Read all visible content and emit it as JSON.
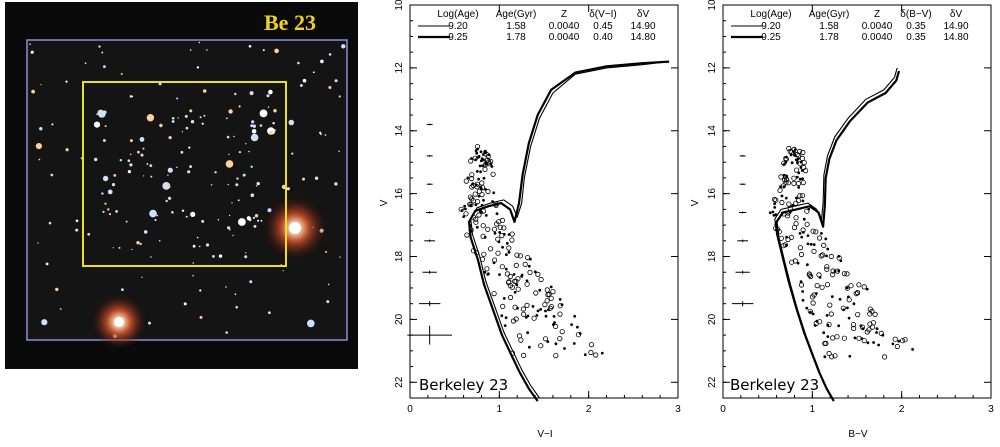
{
  "image_panel": {
    "label": "Be 23",
    "colors": {
      "background": "#0a0a0a",
      "box": "#e8e020",
      "label": "#f2d21e",
      "frame": "#8b8fd8"
    }
  },
  "chart_data": [
    {
      "type": "scatter",
      "cluster_label": "Berkeley 23",
      "xlabel": "V−I",
      "ylabel": "V",
      "xlim": [
        0,
        3
      ],
      "ylim": [
        22.5,
        10
      ],
      "x_ticks": [
        "0",
        "1",
        "2",
        "3"
      ],
      "y_ticks": [
        "10",
        "12",
        "14",
        "16",
        "18",
        "20",
        "22"
      ],
      "legend": {
        "headers": [
          "Log(Age)",
          "Age(Gyr)",
          "Z",
          "δ(V−I)",
          "δV"
        ],
        "rows": [
          [
            "9.20",
            "1.58",
            "0.0040",
            "0.45",
            "14.90"
          ],
          [
            "9.25",
            "1.78",
            "0.0040",
            "0.40",
            "14.80"
          ]
        ]
      },
      "error_bars": [
        {
          "y": 13.8,
          "xerr": 0.02,
          "yerr": 0.01
        },
        {
          "y": 14.8,
          "xerr": 0.02,
          "yerr": 0.01
        },
        {
          "y": 15.7,
          "xerr": 0.03,
          "yerr": 0.02
        },
        {
          "y": 16.6,
          "xerr": 0.04,
          "yerr": 0.03
        },
        {
          "y": 17.5,
          "xerr": 0.06,
          "yerr": 0.04
        },
        {
          "y": 18.5,
          "xerr": 0.08,
          "yerr": 0.05
        },
        {
          "y": 19.5,
          "xerr": 0.12,
          "yerr": 0.08
        },
        {
          "y": 20.5,
          "xerr": 0.25,
          "yerr": 0.3
        }
      ],
      "series": [
        {
          "name": "9.20",
          "style": "thin",
          "x": [
            2.9,
            2.6,
            2.2,
            1.85,
            1.6,
            1.45,
            1.35,
            1.28,
            1.25,
            1.2,
            1.15,
            1.05,
            0.9,
            0.75,
            0.68,
            0.7,
            0.78,
            0.85,
            0.95,
            1.05,
            1.15,
            1.25,
            1.35,
            1.45
          ],
          "y": [
            11.8,
            11.9,
            12.0,
            12.2,
            12.8,
            13.6,
            14.5,
            15.5,
            16.3,
            16.75,
            16.4,
            16.2,
            16.3,
            16.45,
            16.8,
            17.3,
            18.0,
            18.8,
            19.6,
            20.4,
            21.0,
            21.6,
            22.1,
            22.5
          ]
        },
        {
          "name": "9.25",
          "style": "thick",
          "x": [
            2.9,
            2.6,
            2.2,
            1.85,
            1.58,
            1.43,
            1.33,
            1.26,
            1.22,
            1.17,
            1.12,
            1.02,
            0.88,
            0.73,
            0.66,
            0.68,
            0.76,
            0.83,
            0.93,
            1.03,
            1.13,
            1.23,
            1.33,
            1.43
          ],
          "y": [
            11.8,
            11.85,
            11.95,
            12.15,
            12.7,
            13.5,
            14.4,
            15.4,
            16.3,
            16.9,
            16.5,
            16.3,
            16.4,
            16.55,
            16.9,
            17.4,
            18.1,
            18.9,
            19.7,
            20.5,
            21.1,
            21.7,
            22.2,
            22.6
          ]
        }
      ]
    },
    {
      "type": "scatter",
      "cluster_label": "Berkeley 23",
      "xlabel": "B−V",
      "ylabel": "V",
      "xlim": [
        0,
        3
      ],
      "ylim": [
        22.5,
        10
      ],
      "x_ticks": [
        "0",
        "1",
        "2",
        "3"
      ],
      "y_ticks": [
        "10",
        "12",
        "14",
        "16",
        "18",
        "20",
        "22"
      ],
      "legend": {
        "headers": [
          "Log(Age)",
          "Age(Gyr)",
          "Z",
          "δ(B−V)",
          "δV"
        ],
        "rows": [
          [
            "9.20",
            "1.58",
            "0.0040",
            "0.35",
            "14.90"
          ],
          [
            "9.25",
            "1.78",
            "0.0040",
            "0.35",
            "14.80"
          ]
        ]
      },
      "error_bars": [
        {
          "y": 14.8,
          "xerr": 0.02,
          "yerr": 0.01
        },
        {
          "y": 15.7,
          "xerr": 0.03,
          "yerr": 0.02
        },
        {
          "y": 16.6,
          "xerr": 0.04,
          "yerr": 0.03
        },
        {
          "y": 17.5,
          "xerr": 0.06,
          "yerr": 0.04
        },
        {
          "y": 18.5,
          "xerr": 0.08,
          "yerr": 0.05
        },
        {
          "y": 19.5,
          "xerr": 0.12,
          "yerr": 0.08
        }
      ],
      "series": [
        {
          "name": "9.20",
          "style": "thin",
          "x": [
            1.95,
            1.92,
            1.8,
            1.6,
            1.4,
            1.25,
            1.17,
            1.13,
            1.12,
            1.1,
            1.05,
            0.95,
            0.8,
            0.65,
            0.58,
            0.6,
            0.66,
            0.73,
            0.81,
            0.9,
            0.98,
            1.06,
            1.14,
            1.22
          ],
          "y": [
            12.0,
            12.3,
            12.7,
            13.0,
            13.6,
            14.2,
            14.8,
            15.4,
            16.3,
            16.9,
            16.5,
            16.3,
            16.4,
            16.5,
            16.8,
            17.3,
            18.0,
            18.8,
            19.6,
            20.4,
            21.0,
            21.6,
            22.1,
            22.5
          ]
        },
        {
          "name": "9.25",
          "style": "thick",
          "x": [
            1.97,
            1.94,
            1.82,
            1.62,
            1.42,
            1.27,
            1.19,
            1.15,
            1.14,
            1.12,
            1.07,
            0.97,
            0.82,
            0.67,
            0.6,
            0.62,
            0.68,
            0.75,
            0.83,
            0.92,
            1.0,
            1.08,
            1.16,
            1.24
          ],
          "y": [
            12.1,
            12.4,
            12.8,
            13.1,
            13.7,
            14.3,
            14.9,
            15.5,
            16.4,
            17.05,
            16.6,
            16.4,
            16.5,
            16.6,
            16.9,
            17.4,
            18.1,
            18.9,
            19.7,
            20.5,
            21.1,
            21.7,
            22.2,
            22.6
          ]
        }
      ]
    }
  ]
}
